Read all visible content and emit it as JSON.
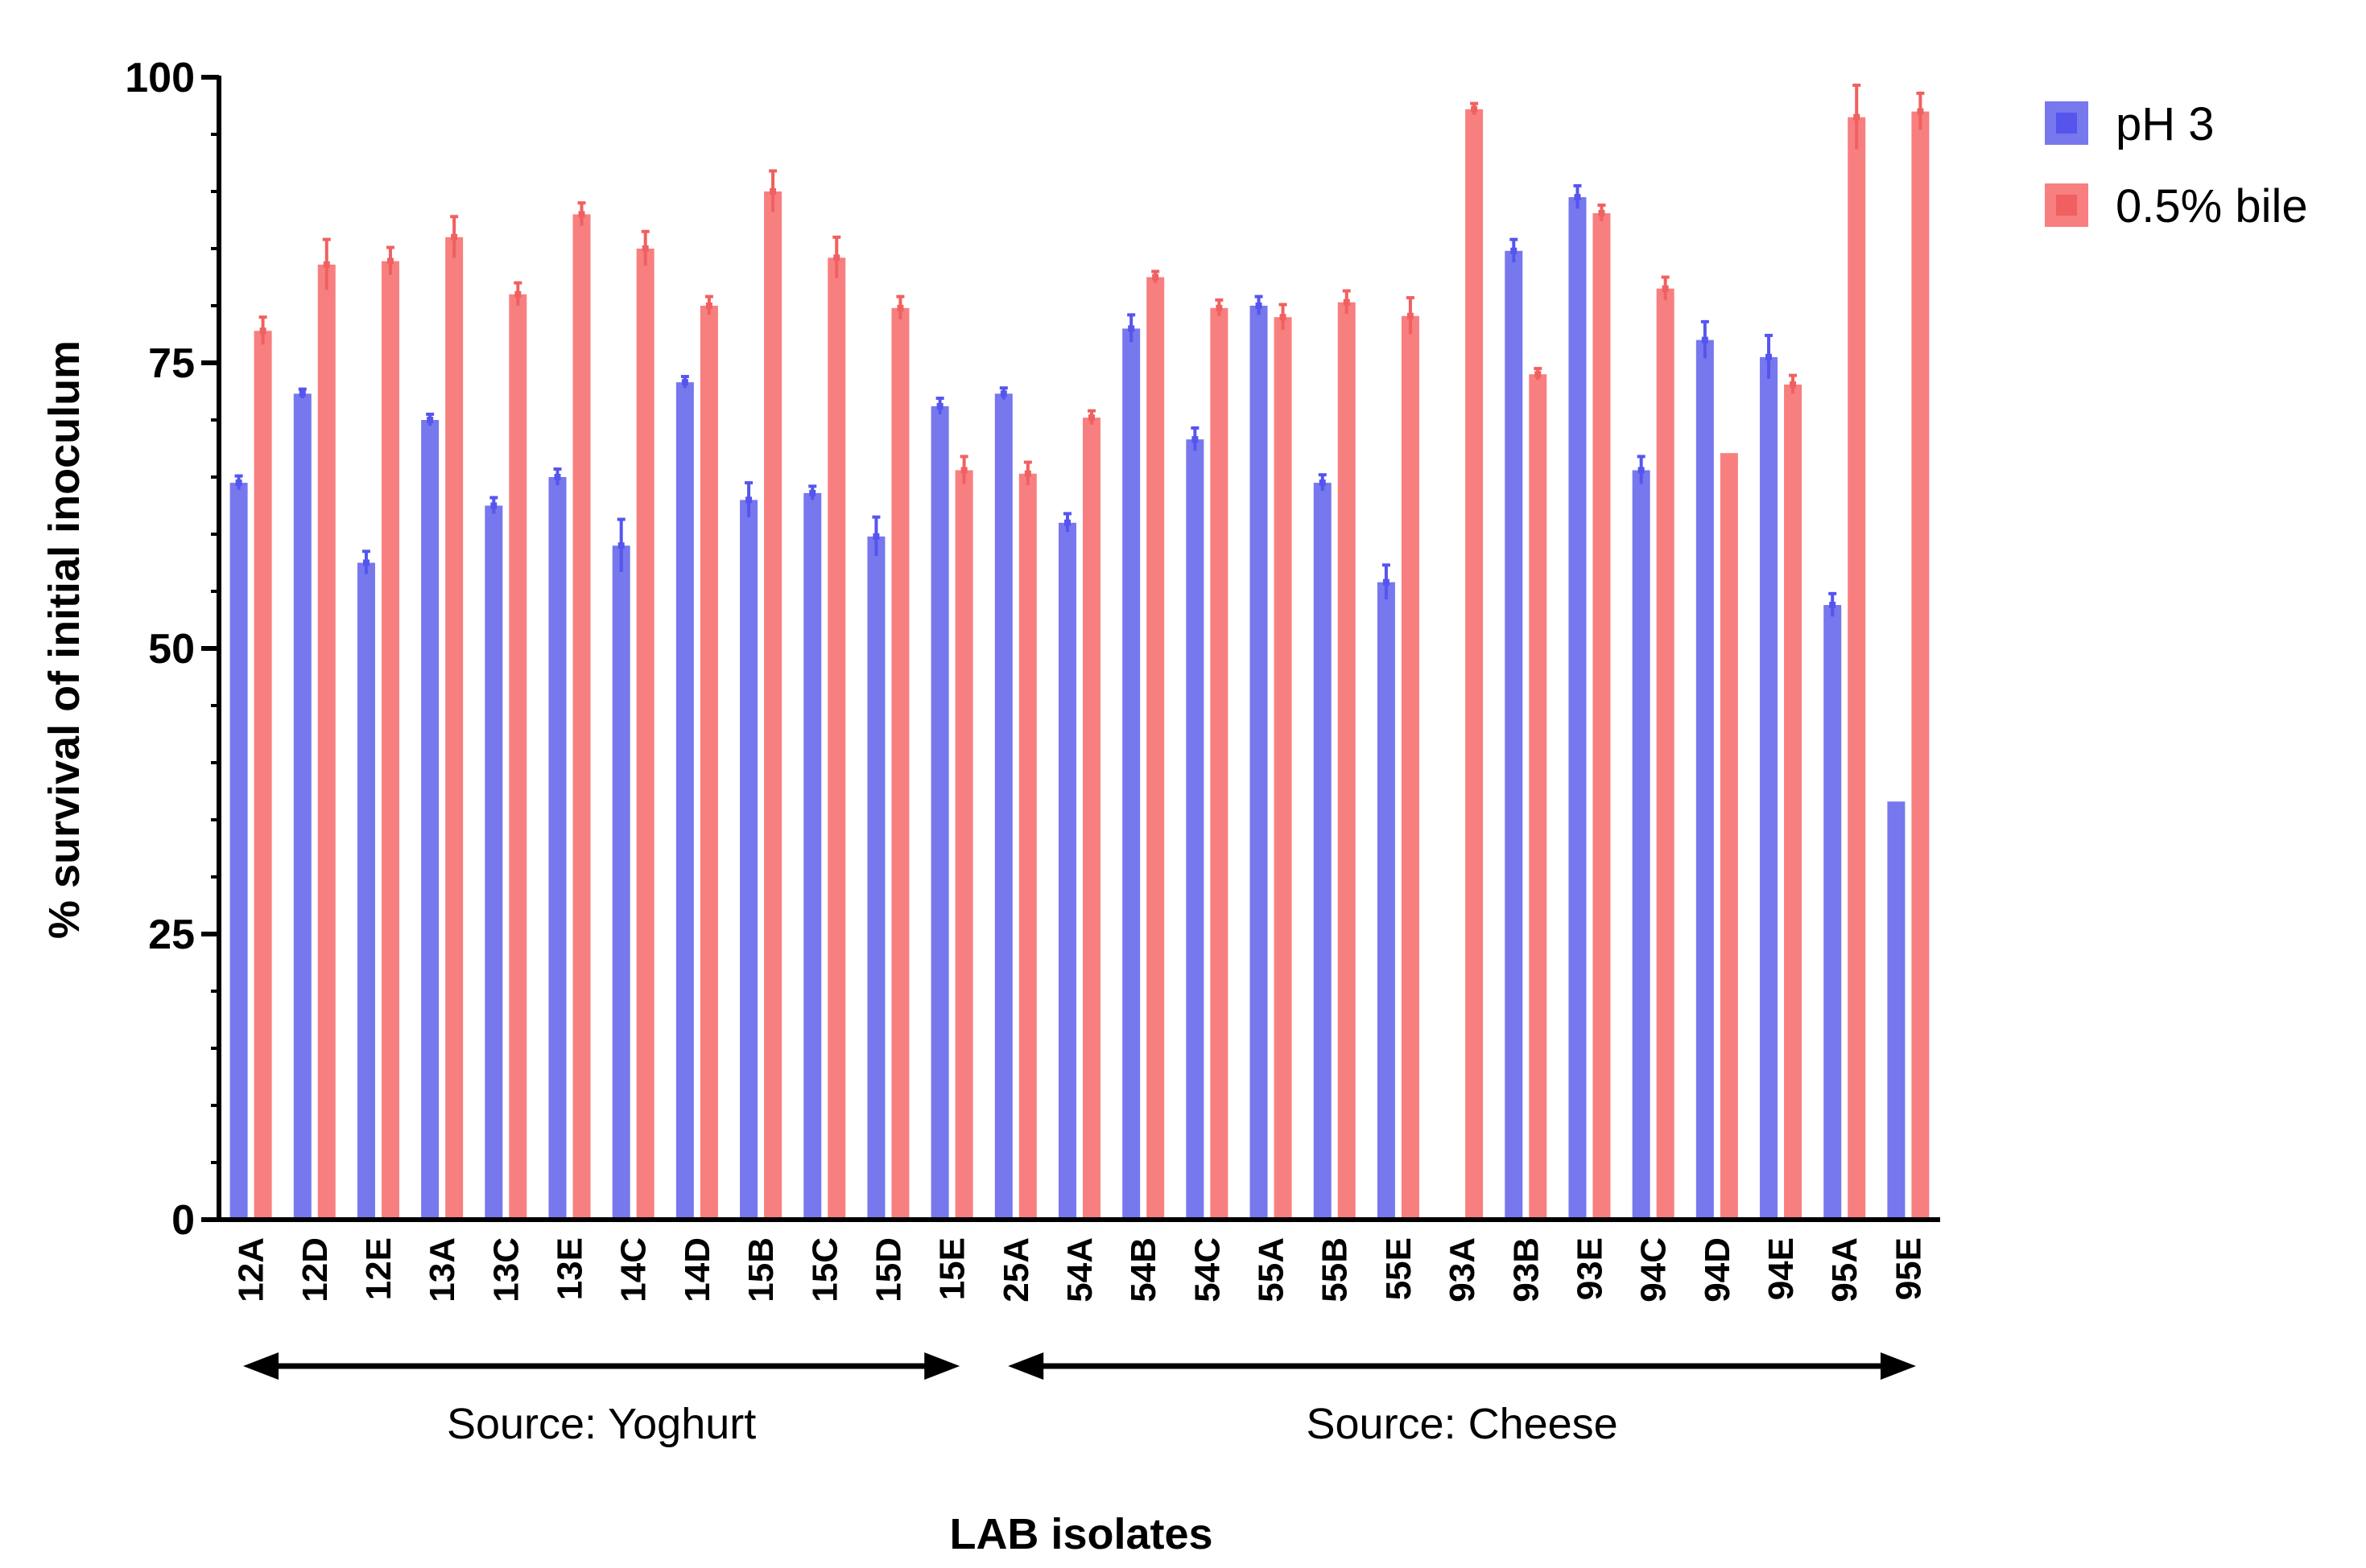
{
  "chart_data": {
    "type": "bar",
    "xlabel": "LAB isolates",
    "ylabel": "% survival of initial inoculum",
    "ylim": [
      0,
      100
    ],
    "yticks": [
      0,
      25,
      50,
      75,
      100
    ],
    "grid": false,
    "legend_position": "top-right",
    "categories": [
      "12A",
      "12D",
      "12E",
      "13A",
      "13C",
      "13E",
      "14C",
      "14D",
      "15B",
      "15C",
      "15D",
      "15E",
      "25A",
      "54A",
      "54B",
      "54C",
      "55A",
      "55B",
      "55E",
      "93A",
      "93B",
      "93E",
      "94C",
      "94D",
      "94E",
      "95A",
      "95E"
    ],
    "series": [
      {
        "name": "pH 3",
        "color": "#7777ee",
        "values": [
          64.5,
          72.3,
          57.5,
          70.0,
          62.5,
          65.0,
          59.0,
          73.3,
          63.0,
          63.6,
          59.8,
          71.2,
          72.3,
          61.0,
          78.0,
          68.3,
          80.0,
          64.5,
          55.8,
          0,
          84.8,
          89.5,
          65.6,
          77.0,
          75.5,
          53.8,
          36.6
        ],
        "errors": [
          0.6,
          0.4,
          1.0,
          0.5,
          0.7,
          0.7,
          2.3,
          0.5,
          1.5,
          0.6,
          1.7,
          0.7,
          0.5,
          0.8,
          1.2,
          1.0,
          0.8,
          0.7,
          1.5,
          0,
          1.0,
          1.0,
          1.2,
          1.6,
          1.9,
          1.0,
          0
        ]
      },
      {
        "name": "0.5% bile",
        "color": "#f87f7f",
        "values": [
          77.8,
          83.6,
          83.9,
          86.0,
          81.0,
          88.0,
          85.0,
          80.0,
          90.0,
          84.2,
          79.8,
          65.6,
          65.3,
          70.2,
          82.5,
          79.8,
          79.0,
          80.3,
          79.1,
          97.2,
          74.0,
          88.1,
          81.5,
          67.1,
          73.1,
          96.5,
          97.0
        ],
        "errors": [
          1.2,
          2.2,
          1.2,
          1.8,
          1.0,
          1.0,
          1.5,
          0.8,
          1.8,
          1.8,
          1.0,
          1.2,
          1.0,
          0.6,
          0.5,
          0.7,
          1.1,
          1.0,
          1.6,
          0.5,
          0.5,
          0.7,
          1.0,
          0,
          0.8,
          2.8,
          1.6
        ]
      }
    ],
    "sources": [
      {
        "label": "Source: Yoghurt",
        "from": "12A",
        "to": "15E"
      },
      {
        "label": "Source: Cheese",
        "from": "25A",
        "to": "95E"
      }
    ]
  },
  "colors": {
    "ph3_fill": "#7777ee",
    "ph3_edge": "#5555ee",
    "bile_fill": "#f87f7f",
    "bile_edge": "#f06060",
    "axis": "#000000"
  }
}
